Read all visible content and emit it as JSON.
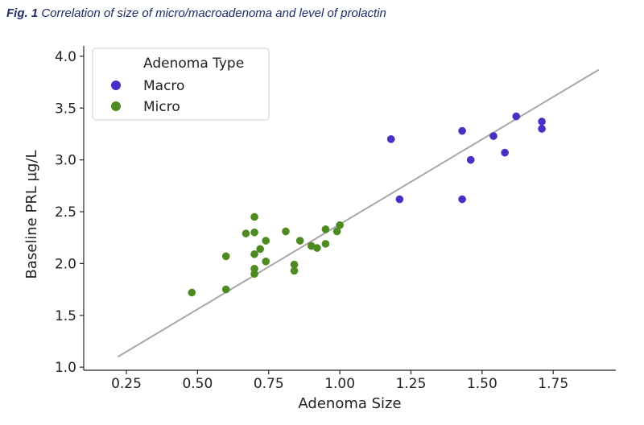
{
  "caption": {
    "label": "Fig. 1",
    "text": "Correlation of size of micro/macroadenoma and level of prolactin"
  },
  "chart_data": {
    "type": "scatter",
    "title": "",
    "xlabel": "Adenoma Size",
    "ylabel": "Baseline PRL µg/L",
    "xlim": [
      0.1,
      1.97
    ],
    "ylim": [
      0.97,
      4.1
    ],
    "xticks": [
      "0.25",
      "0.50",
      "0.75",
      "1.00",
      "1.25",
      "1.50",
      "1.75"
    ],
    "yticks": [
      "1.0",
      "1.5",
      "2.0",
      "2.5",
      "3.0",
      "3.5",
      "4.0"
    ],
    "grid": false,
    "legend": {
      "title": "Adenoma Type",
      "position": "top-left"
    },
    "colors": {
      "Macro": "#4b2fc4",
      "Micro": "#4e8a22",
      "regression": "#a8a8a8"
    },
    "series": [
      {
        "name": "Macro",
        "points": [
          [
            1.18,
            3.2
          ],
          [
            1.21,
            2.62
          ],
          [
            1.43,
            3.28
          ],
          [
            1.43,
            2.62
          ],
          [
            1.46,
            3.0
          ],
          [
            1.54,
            3.23
          ],
          [
            1.58,
            3.07
          ],
          [
            1.62,
            3.42
          ],
          [
            1.71,
            3.37
          ],
          [
            1.71,
            3.3
          ]
        ]
      },
      {
        "name": "Micro",
        "points": [
          [
            0.48,
            1.72
          ],
          [
            0.6,
            2.07
          ],
          [
            0.6,
            1.75
          ],
          [
            0.67,
            2.29
          ],
          [
            0.7,
            2.45
          ],
          [
            0.7,
            2.3
          ],
          [
            0.7,
            2.09
          ],
          [
            0.7,
            1.95
          ],
          [
            0.7,
            1.9
          ],
          [
            0.72,
            2.14
          ],
          [
            0.74,
            2.22
          ],
          [
            0.74,
            2.02
          ],
          [
            0.81,
            2.31
          ],
          [
            0.84,
            1.99
          ],
          [
            0.84,
            1.93
          ],
          [
            0.86,
            2.22
          ],
          [
            0.9,
            2.17
          ],
          [
            0.92,
            2.15
          ],
          [
            0.95,
            2.33
          ],
          [
            0.95,
            2.19
          ],
          [
            0.99,
            2.31
          ],
          [
            1.0,
            2.37
          ]
        ]
      }
    ],
    "regression_line": {
      "x": [
        0.22,
        1.91
      ],
      "y": [
        1.1,
        3.87
      ]
    }
  }
}
